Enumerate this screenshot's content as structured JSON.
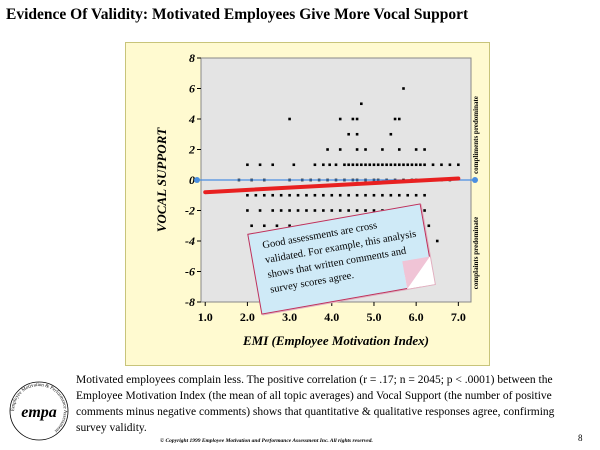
{
  "slide": {
    "title": "Evidence Of Validity: Motivated Employees Give More Vocal Support",
    "caption": "Motivated employees complain less. The positive correlation (r = .17; n = 2045; p < .0001) between the Employee Motivation Index (the mean of all topic averages) and Vocal Support (the number of positive comments minus negative comments) shows that quantitative & qualitative responses agree, confirming survey validity.",
    "copyright": "© Copyright 1999   Employee Motivation and Performance Assessment Inc. All rights reserved.",
    "page_number": "8",
    "note": "Good assessments are cross validated. For example, this analysis shows that written comments and survey scores agree.",
    "logo": {
      "text": "empa",
      "ring_text": "Employee Motivation & Performance Assessment"
    }
  },
  "chart_data": {
    "type": "scatter",
    "xlabel": "EMI (Employee Motivation Index)",
    "ylabel": "VOCAL SUPPORT",
    "xlim": [
      0.9,
      7.3
    ],
    "ylim": [
      -8,
      8
    ],
    "x_ticks": [
      1,
      2,
      3,
      4,
      5,
      6,
      7
    ],
    "x_tick_labels": [
      "1.0",
      "2.0",
      "3.0",
      "4.0",
      "5.0",
      "6.0",
      "7.0"
    ],
    "y_ticks": [
      -8,
      -6,
      -4,
      -2,
      0,
      2,
      4,
      6,
      8
    ],
    "y_tick_labels": [
      "-8",
      "-6",
      "-4",
      "-2",
      "0",
      "2",
      "4",
      "6",
      "8"
    ],
    "right_label_top": "compliments predominate",
    "right_label_bottom": "complaints predominate",
    "regression_line": {
      "x": [
        1.0,
        7.0
      ],
      "y": [
        -0.8,
        0.1
      ]
    },
    "zero_line": {
      "y": 0
    },
    "point_rows": [
      {
        "y": 6,
        "x": [
          5.7
        ]
      },
      {
        "y": 5,
        "x": [
          4.7
        ]
      },
      {
        "y": 4,
        "x": [
          3.0,
          4.2,
          4.5,
          4.6,
          5.5,
          5.6
        ]
      },
      {
        "y": 3,
        "x": [
          4.4,
          4.6,
          5.4
        ]
      },
      {
        "y": 2,
        "x": [
          3.9,
          4.2,
          4.6,
          4.8,
          5.2,
          5.6,
          6.0,
          6.2
        ]
      },
      {
        "y": 1,
        "x": [
          2.0,
          2.3,
          2.6,
          3.1,
          3.6,
          3.8,
          3.95,
          4.1,
          4.3,
          4.4,
          4.5,
          4.6,
          4.7,
          4.8,
          4.9,
          5.0,
          5.1,
          5.2,
          5.3,
          5.4,
          5.5,
          5.6,
          5.7,
          5.8,
          5.9,
          6.0,
          6.1,
          6.2,
          6.4,
          6.6,
          6.8,
          7.0
        ]
      },
      {
        "y": 0,
        "x": [
          1.8,
          2.1,
          2.4,
          3.0,
          3.3,
          3.5,
          3.7,
          3.9,
          4.1,
          4.3,
          4.5,
          4.6,
          4.8,
          5.0,
          5.1,
          5.3,
          5.5,
          5.7,
          5.9,
          6.0,
          6.2,
          6.4,
          6.6,
          6.8
        ]
      },
      {
        "y": -1,
        "x": [
          2.0,
          2.2,
          2.4,
          2.6,
          2.8,
          3.0,
          3.2,
          3.4,
          3.6,
          3.8,
          4.0,
          4.2,
          4.4,
          4.6,
          4.8,
          5.0,
          5.2,
          5.4,
          5.6,
          5.8,
          6.0,
          6.2
        ]
      },
      {
        "y": -2,
        "x": [
          2.0,
          2.3,
          2.6,
          2.8,
          3.0,
          3.2,
          3.4,
          3.6,
          3.8,
          4.0,
          4.2,
          4.4,
          4.6,
          4.8,
          5.0,
          5.2,
          5.4,
          5.6,
          5.8,
          6.0,
          6.2
        ]
      },
      {
        "y": -3,
        "x": [
          2.1,
          2.4,
          2.7,
          3.0,
          3.3,
          3.6,
          3.9,
          4.2,
          4.5,
          4.8,
          5.1,
          5.4,
          5.7,
          6.0,
          6.3
        ]
      },
      {
        "y": -4,
        "x": [
          2.5,
          2.8,
          3.1,
          5.8,
          6.1,
          6.5
        ]
      },
      {
        "y": -5,
        "x": [
          2.7,
          3.0,
          3.2
        ]
      },
      {
        "y": -6,
        "x": [
          3.4
        ]
      }
    ]
  }
}
